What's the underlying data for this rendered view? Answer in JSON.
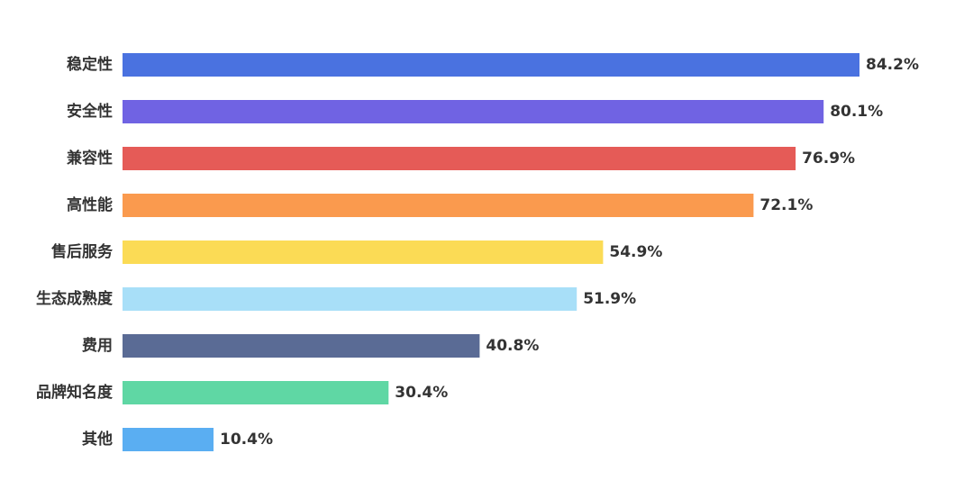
{
  "chart_data": {
    "type": "bar",
    "orientation": "horizontal",
    "title": "",
    "xlabel": "",
    "ylabel": "",
    "grid": false,
    "legend": "none",
    "value_suffix": "%",
    "xlim": [
      0,
      90
    ],
    "categories": [
      "稳定性",
      "安全性",
      "兼容性",
      "高性能",
      "售后服务",
      "生态成熟度",
      "费用",
      "品牌知名度",
      "其他"
    ],
    "values": [
      84.2,
      80.1,
      76.9,
      72.1,
      54.9,
      51.9,
      40.8,
      30.4,
      10.4
    ],
    "value_labels": [
      "84.2%",
      "80.1%",
      "76.9%",
      "72.1%",
      "54.9%",
      "51.9%",
      "40.8%",
      "30.4%",
      "10.4%"
    ],
    "colors": [
      "#4a72e0",
      "#7063e3",
      "#e55b57",
      "#fa9a4e",
      "#fbdb55",
      "#a8dff8",
      "#5a6b95",
      "#5fd7a4",
      "#5aaef2"
    ]
  }
}
